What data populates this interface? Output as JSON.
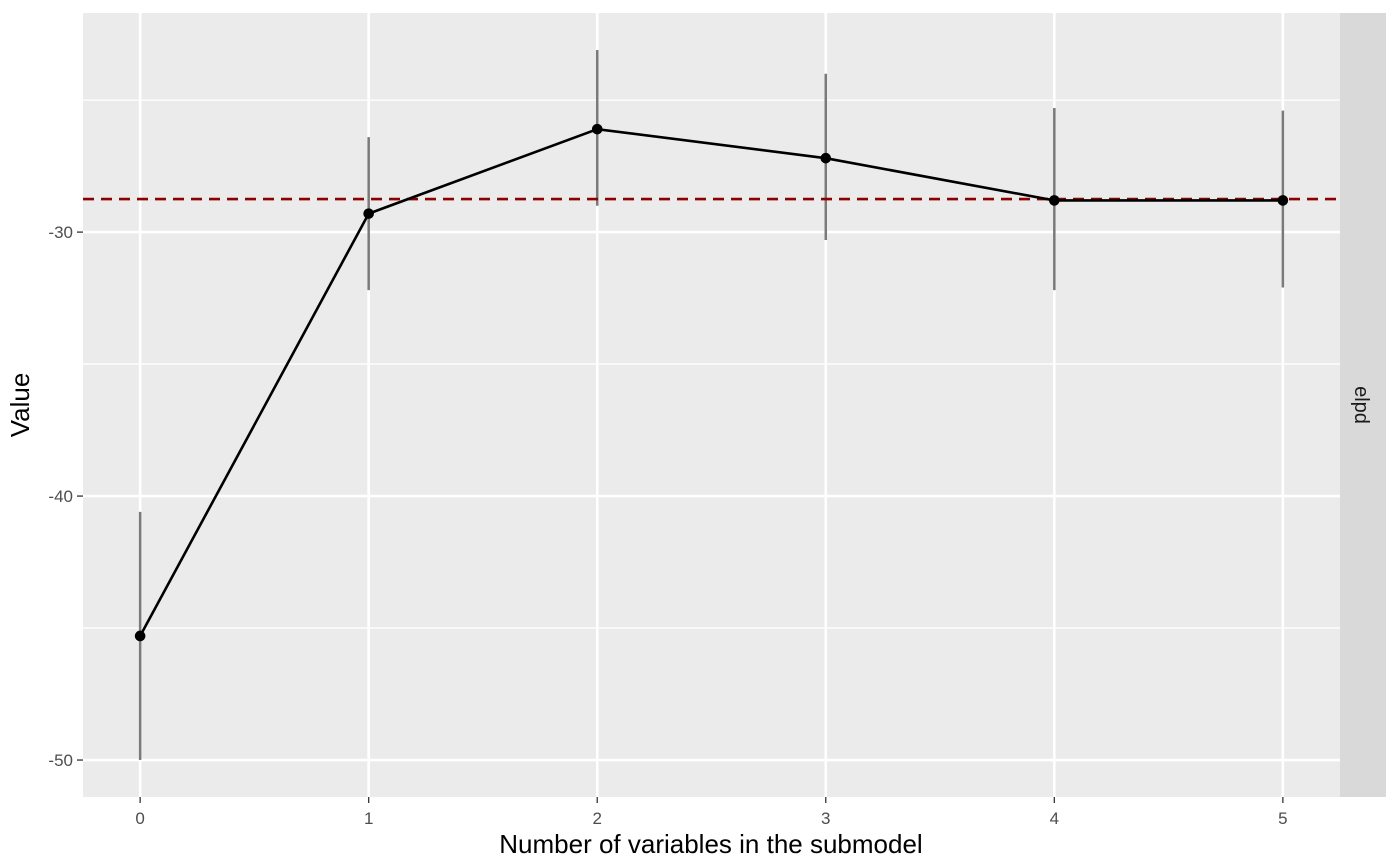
{
  "chart_data": {
    "type": "line",
    "xlabel": "Number of variables in the submodel",
    "ylabel": "Value",
    "facet_label": "elpd",
    "x_ticks": [
      "0",
      "1",
      "2",
      "3",
      "4",
      "5"
    ],
    "y_ticks": [
      {
        "value": -50,
        "label": "-50"
      },
      {
        "value": -40,
        "label": "-40"
      },
      {
        "value": -30,
        "label": "-30"
      }
    ],
    "xlim": [
      -0.25,
      5.25
    ],
    "ylim": [
      -51.4,
      -21.7
    ],
    "grid": true,
    "series": [
      {
        "x": [
          0,
          1,
          2,
          3,
          4,
          5
        ],
        "values": [
          -45.3,
          -29.3,
          -26.1,
          -27.2,
          -28.8,
          -28.8
        ],
        "lower": [
          -50.0,
          -32.2,
          -29.0,
          -30.3,
          -32.2,
          -32.1
        ],
        "upper": [
          -40.6,
          -26.4,
          -23.1,
          -24.0,
          -25.3,
          -25.4
        ]
      }
    ],
    "reference_line": {
      "value": -28.75,
      "style": "dashed"
    },
    "colors": {
      "panel": "#ebebeb",
      "grid": "#ffffff",
      "strip": "#d9d9d9",
      "line": "#000000",
      "errorbar": "#7a7a7a",
      "reference": "#8b0000"
    }
  }
}
